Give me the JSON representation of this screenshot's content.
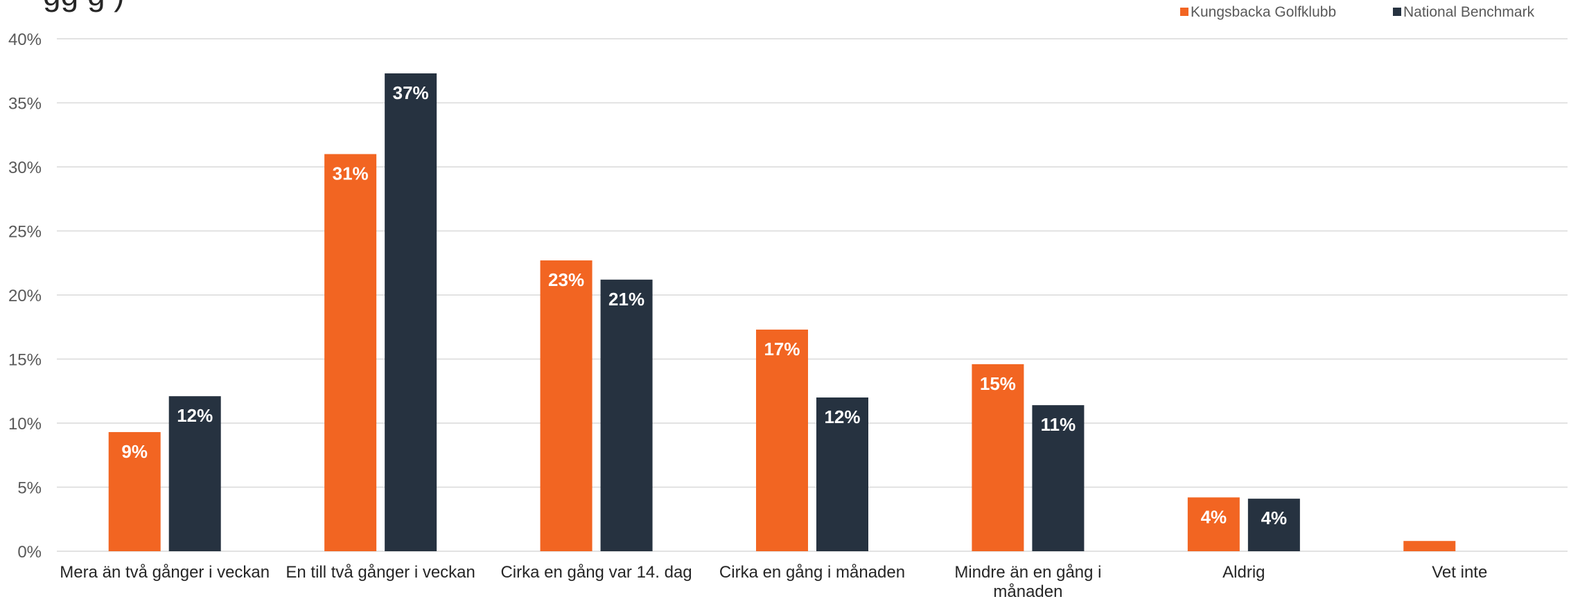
{
  "chart_data": {
    "type": "bar",
    "title_fragment": "gg g   )",
    "categories": [
      [
        "Mera än två gånger i veckan"
      ],
      [
        "En till två gånger i veckan"
      ],
      [
        "Cirka en gång var 14. dag"
      ],
      [
        "Cirka en gång i månaden"
      ],
      [
        "Mindre än en gång i",
        "månaden"
      ],
      [
        "Aldrig"
      ],
      [
        "Vet inte"
      ]
    ],
    "series": [
      {
        "name": "Kungsbacka Golfklubb",
        "color": "#f26522",
        "values": [
          9.3,
          31.0,
          22.7,
          17.3,
          14.6,
          4.2,
          0.8
        ],
        "labels": [
          "9%",
          "31%",
          "23%",
          "17%",
          "15%",
          "4%",
          ""
        ]
      },
      {
        "name": "National Benchmark",
        "color": "#263240",
        "values": [
          12.1,
          37.3,
          21.2,
          12.0,
          11.4,
          4.1,
          null
        ],
        "labels": [
          "12%",
          "37%",
          "21%",
          "12%",
          "11%",
          "4%",
          ""
        ]
      }
    ],
    "ylim": [
      0,
      40
    ],
    "yticks": [
      0,
      5,
      10,
      15,
      20,
      25,
      30,
      35,
      40
    ],
    "ytick_labels": [
      "0%",
      "5%",
      "10%",
      "15%",
      "20%",
      "25%",
      "30%",
      "35%",
      "40%"
    ],
    "grid": true,
    "legend_position": "top-right"
  }
}
